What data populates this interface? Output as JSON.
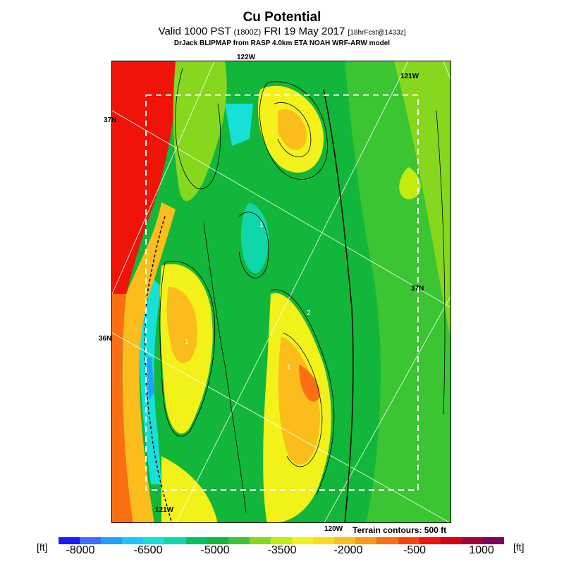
{
  "header": {
    "title": "Cu Potential",
    "valid_line": "Valid 1000 PST",
    "zulu": "(1800Z)",
    "date": "FRI 19 May 2017",
    "forecast": "[18hrFcst@1433z]",
    "model_line": "DrJack BLIPMAP from RASP 4.0km ETA NOAH WRF-ARW model"
  },
  "map": {
    "lon_labels": [
      "122W",
      "121W",
      "121W",
      "120W"
    ],
    "lat_labels": [
      "37N",
      "37N",
      "36N"
    ],
    "contour_labels": [
      "1",
      "2",
      "1",
      "1"
    ],
    "terrain_note": "Terrain contours: 500 ft"
  },
  "colorbar": {
    "unit_left": "[ft]",
    "unit_right": "[ft]",
    "ticks": [
      "-8000",
      "-6500",
      "-5000",
      "-3500",
      "-2000",
      "-500",
      "1000"
    ],
    "colors": [
      "#1a1aff",
      "#3c6dff",
      "#1fa0ff",
      "#19c8ff",
      "#17e0d8",
      "#10d7a8",
      "#07c060",
      "#12b63a",
      "#3bc532",
      "#85d81d",
      "#c2ec10",
      "#f2f21a",
      "#f8dc1a",
      "#fbbd1b",
      "#fc9a1a",
      "#fb6f13",
      "#f8440c",
      "#ef1308",
      "#d40018",
      "#a4003c",
      "#7d0059"
    ]
  }
}
